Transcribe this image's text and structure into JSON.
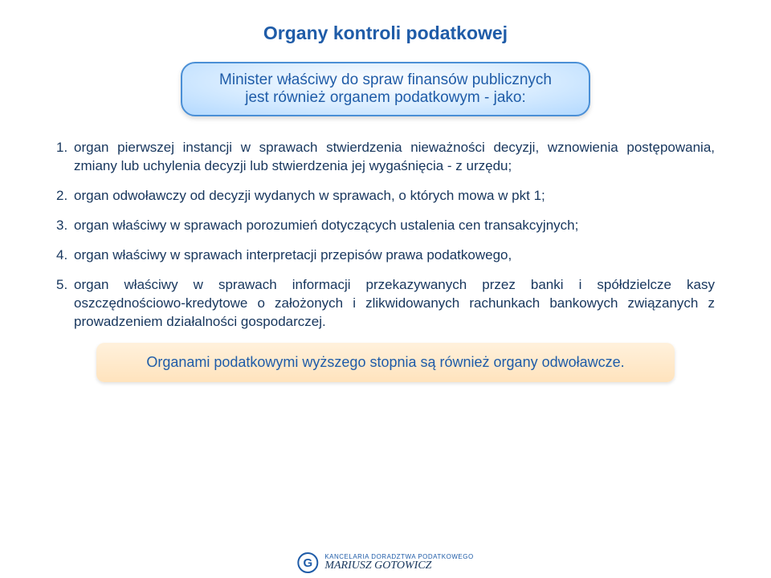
{
  "colors": {
    "title": "#1f5ca8",
    "callout_text": "#1f5ca8",
    "callout_border": "#4a8fd6",
    "body": "#17365d",
    "footer_text": "#1f5ca8",
    "logo_border": "#1f5ca8",
    "logo_g": "#1f5ca8",
    "logo_line1": "#1f5ca8",
    "logo_line2": "#17365d"
  },
  "fontsizes": {
    "title": 23,
    "callout": 19,
    "body": 17,
    "footer": 18,
    "logo_line1": 8,
    "logo_line2": 14,
    "logo_g": 15
  },
  "title": "Organy kontroli podatkowej",
  "callout": {
    "line1": "Minister właściwy do spraw finansów publicznych",
    "line2": "jest również organem podatkowym - jako:"
  },
  "items": [
    {
      "n": "1.",
      "t": "organ pierwszej instancji w sprawach stwierdzenia nieważności decyzji, wznowienia postępowania, zmiany lub uchylenia decyzji lub stwierdzenia jej wygaśnięcia - z urzędu;"
    },
    {
      "n": "2.",
      "t": "organ odwoławczy od decyzji wydanych w sprawach, o których mowa w pkt 1;"
    },
    {
      "n": "3.",
      "t": "organ właściwy w sprawach porozumień dotyczących ustalenia cen transakcyjnych;"
    },
    {
      "n": "4.",
      "t": "organ właściwy w sprawach interpretacji przepisów prawa podatkowego,"
    },
    {
      "n": "5.",
      "t": "organ właściwy w sprawach informacji przekazywanych przez banki i spółdzielcze kasy oszczędnościowo-kredytowe o założonych i zlikwidowanych rachunkach bankowych związanych z prowadzeniem działalności gospodarczej."
    }
  ],
  "footer": "Organami podatkowymi wyższego stopnia są również organy odwoławcze.",
  "logo": {
    "g": "G",
    "line1": "KANCELARIA DORADZTWA PODATKOWEGO",
    "line2": "MARIUSZ GOTOWICZ"
  }
}
